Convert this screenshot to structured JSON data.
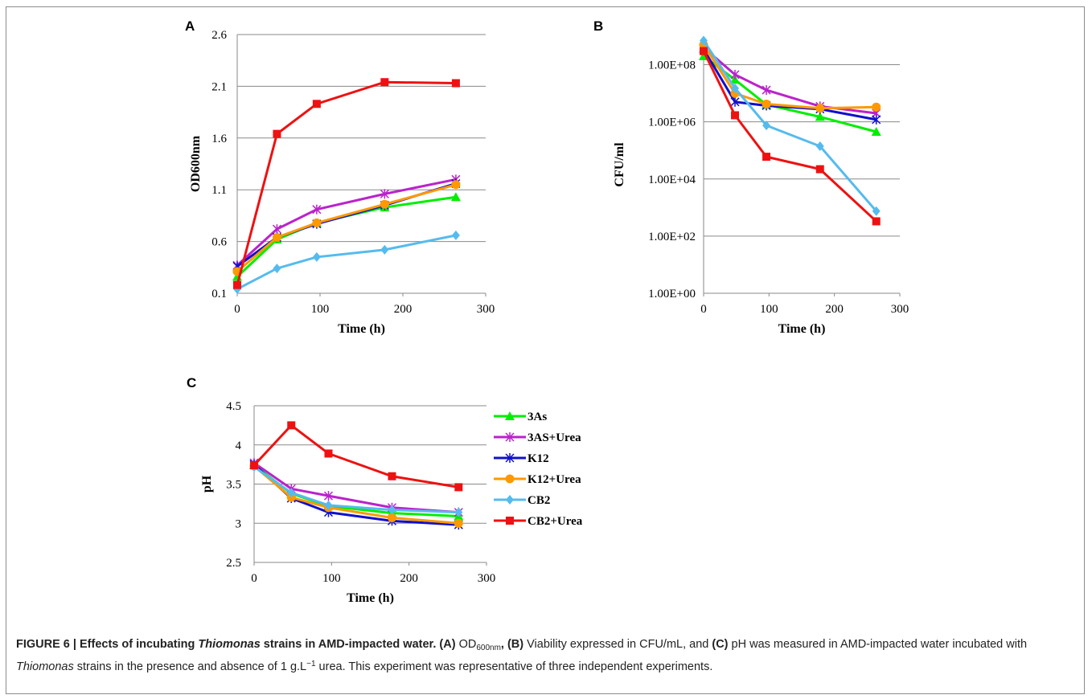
{
  "figure": {
    "caption_label": "FIGURE 6 | Effects of incubating ",
    "caption_genus": "Thiomonas",
    "caption_title_end": " strains in AMD-impacted water.",
    "caption_a": " (A) ",
    "caption_od": "OD",
    "caption_od_sub": "600nm",
    "caption_b": ", (B) ",
    "caption_b_text": "Viability expressed in CFU/mL, and ",
    "caption_c": "(C) ",
    "caption_c_text": "pH was measured in AMD-impacted water incubated with ",
    "caption_genus2": "Thiomonas",
    "caption_tail": " strains in the presence and absence of 1 g.L",
    "caption_sup": "−1",
    "caption_end": " urea. This experiment was representative of three independent experiments."
  },
  "legend": {
    "entries": [
      {
        "label": "3As",
        "color": "#00ee00",
        "marker": "triangle"
      },
      {
        "label": "3AS+Urea",
        "color": "#bb22cc",
        "marker": "star"
      },
      {
        "label": "K12",
        "color": "#1010cc",
        "marker": "star"
      },
      {
        "label": "K12+Urea",
        "color": "#ff9900",
        "marker": "circle"
      },
      {
        "label": "CB2",
        "color": "#55bbee",
        "marker": "diamond"
      },
      {
        "label": "CB2+Urea",
        "color": "#ee1111",
        "marker": "square"
      }
    ]
  },
  "chart_data": [
    {
      "panel": "A",
      "type": "line",
      "xlabel": "Time (h)",
      "ylabel": "OD600nm",
      "xlim": [
        0,
        300
      ],
      "ylim": [
        0.1,
        2.6
      ],
      "xticks": [
        0,
        100,
        200,
        300
      ],
      "yticks": [
        0.1,
        0.6,
        1.1,
        1.6,
        2.1,
        2.6
      ],
      "ytick_labels": [
        "0.1",
        "0.6",
        "1.1",
        "1.6",
        "2.1",
        "2.6"
      ],
      "grid": "horizontal",
      "x": [
        0,
        48,
        96,
        178,
        264
      ],
      "series": [
        {
          "name": "3As",
          "values": [
            0.26,
            0.62,
            0.78,
            0.93,
            1.03
          ]
        },
        {
          "name": "3AS+Urea",
          "values": [
            0.37,
            0.72,
            0.91,
            1.06,
            1.2
          ]
        },
        {
          "name": "K12",
          "values": [
            0.36,
            0.64,
            0.77,
            0.95,
            1.16
          ]
        },
        {
          "name": "K12+Urea",
          "values": [
            0.31,
            0.64,
            0.78,
            0.96,
            1.15
          ]
        },
        {
          "name": "CB2",
          "values": [
            0.14,
            0.34,
            0.45,
            0.52,
            0.66
          ]
        },
        {
          "name": "CB2+Urea",
          "values": [
            0.18,
            1.64,
            1.93,
            2.14,
            2.13
          ]
        }
      ]
    },
    {
      "panel": "B",
      "type": "line",
      "scale": "log",
      "xlabel": "Time (h)",
      "ylabel": "CFU/ml",
      "xlim": [
        0,
        300
      ],
      "ylim": [
        1,
        1000000000
      ],
      "xticks": [
        0,
        100,
        200,
        300
      ],
      "yticks": [
        1,
        100,
        10000,
        1000000,
        100000000
      ],
      "ytick_labels": [
        "1.00E+00",
        "1.00E+02",
        "1.00E+04",
        "1.00E+06",
        "1.00E+08"
      ],
      "grid": "horizontal",
      "x": [
        0,
        48,
        96,
        178,
        264
      ],
      "series": [
        {
          "name": "3As",
          "values": [
            200000000,
            30000000,
            4000000,
            1500000,
            450000
          ]
        },
        {
          "name": "3AS+Urea",
          "values": [
            400000000,
            45000000,
            13000000,
            3500000,
            2000000
          ]
        },
        {
          "name": "K12",
          "values": [
            350000000,
            5000000,
            3700000,
            2800000,
            1200000
          ]
        },
        {
          "name": "K12+Urea",
          "values": [
            500000000,
            10000000,
            4200000,
            3000000,
            3300000
          ]
        },
        {
          "name": "CB2",
          "values": [
            700000000,
            15000000,
            750000,
            140000,
            750
          ]
        },
        {
          "name": "CB2+Urea",
          "values": [
            300000000,
            1700000,
            60000,
            22000,
            330
          ]
        }
      ]
    },
    {
      "panel": "C",
      "type": "line",
      "xlabel": "Time (h)",
      "ylabel": "pH",
      "xlim": [
        0,
        300
      ],
      "ylim": [
        2.5,
        4.5
      ],
      "xticks": [
        0,
        100,
        200,
        300
      ],
      "yticks": [
        2.5,
        3,
        3.5,
        4,
        4.5
      ],
      "ytick_labels": [
        "2.5",
        "3",
        "3.5",
        "4",
        "4.5"
      ],
      "grid": "horizontal",
      "x": [
        0,
        48,
        96,
        178,
        264
      ],
      "series": [
        {
          "name": "3As",
          "values": [
            3.74,
            3.38,
            3.22,
            3.13,
            3.09
          ]
        },
        {
          "name": "3AS+Urea",
          "values": [
            3.77,
            3.44,
            3.35,
            3.2,
            3.14
          ]
        },
        {
          "name": "K12",
          "values": [
            3.75,
            3.32,
            3.14,
            3.03,
            2.98
          ]
        },
        {
          "name": "K12+Urea",
          "values": [
            3.73,
            3.33,
            3.2,
            3.07,
            3.0
          ]
        },
        {
          "name": "CB2",
          "values": [
            3.72,
            3.39,
            3.23,
            3.17,
            3.14
          ]
        },
        {
          "name": "CB2+Urea",
          "values": [
            3.74,
            4.25,
            3.89,
            3.6,
            3.46
          ]
        }
      ]
    }
  ]
}
